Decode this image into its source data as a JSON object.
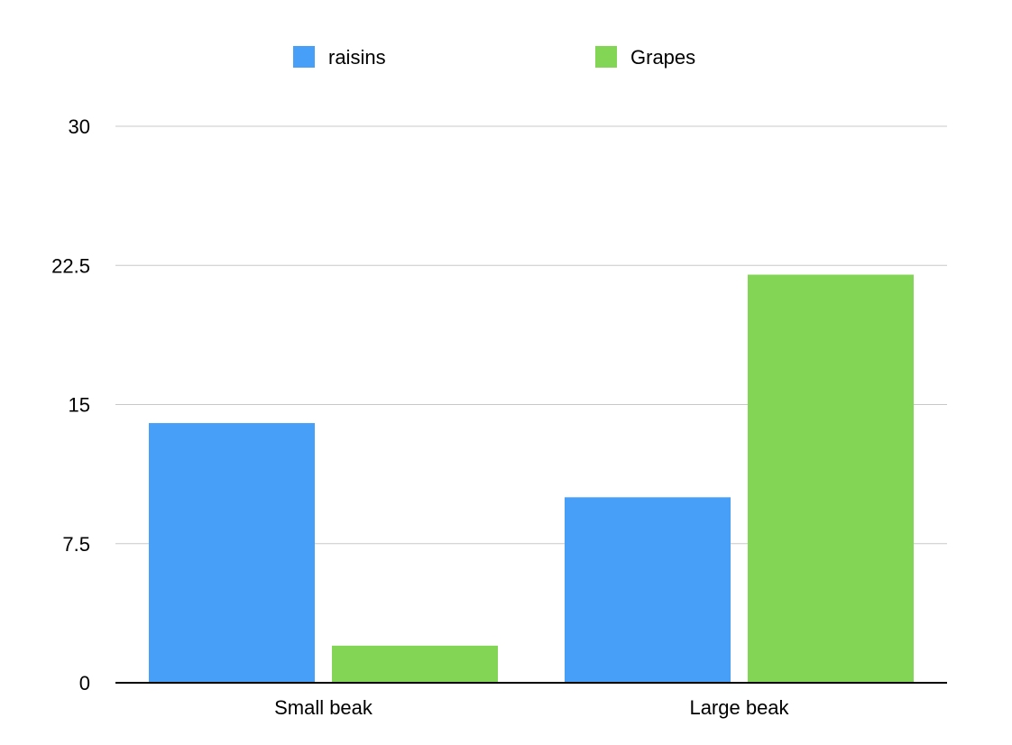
{
  "chart_data": {
    "type": "bar",
    "categories": [
      "Small beak",
      "Large beak"
    ],
    "series": [
      {
        "name": "raisins",
        "values": [
          14,
          10
        ],
        "color": "#489ff8"
      },
      {
        "name": "Grapes",
        "values": [
          2,
          22
        ],
        "color": "#83d655"
      }
    ],
    "yticks": [
      "0",
      "7.5",
      "15",
      "22.5",
      "30"
    ],
    "ylim": [
      0,
      30
    ],
    "title": "",
    "xlabel": "",
    "ylabel": "",
    "grid": true,
    "legend_position": "top-center"
  }
}
